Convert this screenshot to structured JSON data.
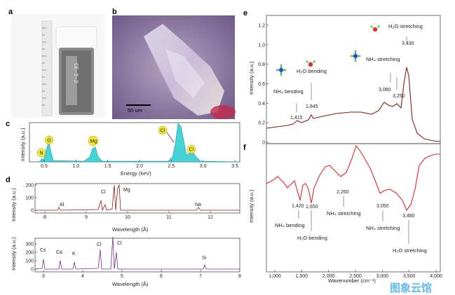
{
  "panels": {
    "a": {
      "letter": "a",
      "vial_text": "CE-3-2"
    },
    "b": {
      "letter": "b",
      "scalebar": "50 um"
    },
    "c": {
      "letter": "c",
      "xlabel": "Energy (keV)",
      "ylabel": "Intensity (a.u.)",
      "xticks": [
        "0.5",
        "1.0",
        "1.5",
        "2.0",
        "2.5",
        "3.0",
        "3.5"
      ],
      "elements": [
        "N",
        "O",
        "Mg",
        "Cl",
        "Cl"
      ]
    },
    "d": {
      "letter": "d",
      "top": {
        "ylabel": "Intensity (a.u.)",
        "xlabel": "Wavelength (Å)",
        "xticks": [
          "8",
          "9",
          "10",
          "11",
          "12"
        ],
        "yticks": [
          "0",
          "100",
          "200"
        ],
        "elements": [
          "Al",
          "Cl",
          "Mg",
          "Na"
        ]
      },
      "bottom": {
        "ylabel": "Intensity (a.u.)",
        "xlabel": "Wavelength (Å)",
        "xticks": [
          "3",
          "4",
          "5",
          "6",
          "7",
          "8"
        ],
        "yticks": [
          "0",
          "100",
          "200",
          "300"
        ],
        "elements": [
          "Cs",
          "Ca",
          "K",
          "Cl",
          "Cl",
          "Si"
        ]
      }
    },
    "e": {
      "letter": "e",
      "ylabel": "Intensity (a.u.)",
      "yticks": [
        "0",
        "0.2",
        "0.4",
        "0.6",
        "0.8",
        "1.0",
        "1.2"
      ],
      "peaks": [
        "1,415",
        "1,645",
        "3,080",
        "3,250",
        "3,430"
      ],
      "annotations": [
        "NH₄ bending",
        "H₂O bending",
        "NH₄ stretching",
        "H₂O stretching"
      ]
    },
    "f": {
      "letter": "f",
      "ylabel": "Intensity (a.u.)",
      "xlabel": "Wavenumber (cm⁻¹)",
      "xticks": [
        "1,000",
        "1,500",
        "2,000",
        "2,500",
        "3,000",
        "3,500",
        "4,000"
      ],
      "peaks": [
        "1,420",
        "1,650",
        "2,260",
        "3,050",
        "3,480"
      ],
      "annotations": [
        "NH₄ bending",
        "H₂O bending",
        "NH₄ stretching",
        "NH₄ stretching",
        "H₂O stretching"
      ]
    }
  },
  "colors": {
    "c_fill": "#45d3d8",
    "d_top": "#8b1a1a",
    "d_bottom": "#7a2a8a",
    "e_line": "#8b1a1a",
    "f_line": "#e8262a",
    "el_circle": "#f4e83a"
  },
  "watermark": "图象云馆"
}
